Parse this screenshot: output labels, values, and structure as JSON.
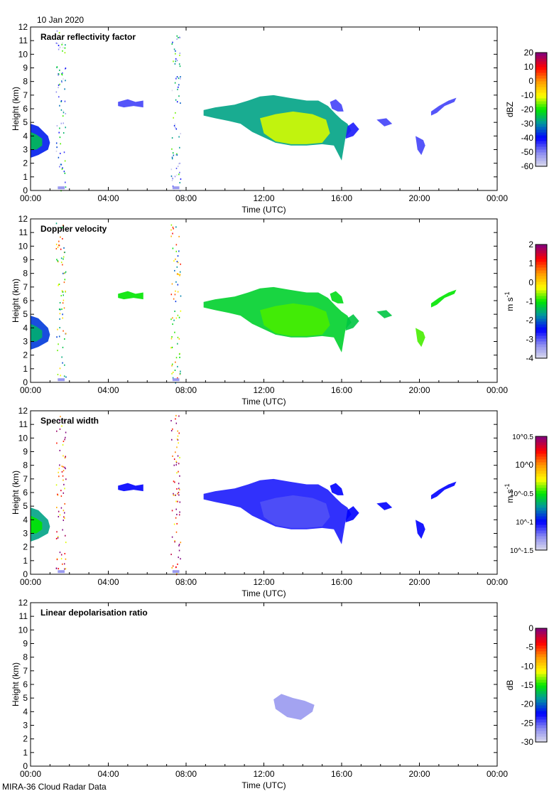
{
  "header": {
    "date": "10 Jan 2020"
  },
  "footer": {
    "caption": "MIRA-36 Cloud Radar Data"
  },
  "chart_data": {
    "type": "heatmap",
    "x_ticks": [
      "00:00",
      "04:00",
      "08:00",
      "12:00",
      "16:00",
      "20:00",
      "00:00"
    ],
    "x_tick_hours": [
      0,
      4,
      8,
      12,
      16,
      20,
      24
    ],
    "xlim": [
      0,
      24
    ],
    "ylim": [
      0,
      12
    ],
    "y_ticks": [
      "0",
      "1",
      "2",
      "3",
      "4",
      "5",
      "6",
      "7",
      "8",
      "9",
      "10",
      "11",
      "12"
    ],
    "xlabel": "Time (UTC)",
    "ylabel": "Height (km)",
    "shapes": {
      "left_outer": {
        "t": [
          0,
          0.4,
          0.9,
          1.0,
          0.9,
          0.4,
          0
        ],
        "h": [
          4.9,
          4.7,
          4.0,
          3.5,
          3.0,
          2.6,
          2.4
        ]
      },
      "left_inner": {
        "t": [
          0,
          0.3,
          0.6,
          0.6,
          0.3,
          0
        ],
        "h": [
          4.3,
          4.1,
          3.8,
          3.3,
          3.0,
          3.0
        ]
      },
      "patch_0500": {
        "t": [
          4.5,
          5.0,
          5.4,
          5.8,
          5.8,
          5.3,
          4.8,
          4.5
        ],
        "h": [
          6.5,
          6.7,
          6.5,
          6.6,
          6.1,
          6.2,
          6.1,
          6.2
        ]
      },
      "main_outer": {
        "t": [
          8.9,
          9.5,
          10.5,
          11.2,
          11.8,
          12.5,
          13.3,
          14.2,
          14.8,
          15.3,
          15.7,
          16.0,
          16.3,
          16.5,
          16.2,
          16.0,
          15.6,
          15.0,
          14.2,
          13.4,
          12.6,
          12.0,
          11.4,
          10.8,
          10.2,
          9.5,
          8.9
        ],
        "h": [
          5.9,
          6.1,
          6.3,
          6.6,
          6.9,
          7.0,
          6.8,
          6.6,
          6.6,
          6.2,
          5.6,
          5.2,
          4.9,
          4.4,
          3.9,
          2.2,
          3.3,
          3.4,
          3.3,
          3.3,
          3.5,
          3.9,
          4.3,
          4.9,
          5.1,
          5.3,
          5.5
        ]
      },
      "main_inner": {
        "t": [
          11.8,
          12.6,
          13.5,
          14.5,
          15.2,
          15.4,
          15.0,
          14.2,
          13.4,
          12.6,
          12.0
        ],
        "h": [
          5.3,
          5.6,
          5.8,
          5.6,
          5.2,
          4.2,
          3.5,
          3.4,
          3.4,
          3.6,
          4.2
        ]
      },
      "tail_1620": {
        "t": [
          16.3,
          16.6,
          16.9,
          16.6,
          16.2
        ],
        "h": [
          4.7,
          5.0,
          4.5,
          4.0,
          3.8
        ]
      },
      "patch_1800": {
        "t": [
          17.8,
          18.3,
          18.6,
          18.2
        ],
        "h": [
          5.2,
          5.3,
          4.9,
          4.7
        ]
      },
      "patch_2000": {
        "t": [
          19.8,
          20.2,
          20.3,
          20.1,
          19.9
        ],
        "h": [
          4.0,
          3.7,
          3.3,
          2.6,
          3.0
        ]
      },
      "patch_2100": {
        "t": [
          20.6,
          21.0,
          21.5,
          21.9,
          21.8,
          21.3,
          20.9,
          20.6
        ],
        "h": [
          5.8,
          6.2,
          6.6,
          6.8,
          6.5,
          6.2,
          5.7,
          5.5
        ]
      },
      "patch_1530": {
        "t": [
          15.4,
          15.7,
          16.0,
          16.1,
          15.8,
          15.5
        ],
        "h": [
          6.5,
          6.7,
          6.3,
          5.8,
          5.8,
          6.0
        ]
      },
      "ldr_blob": {
        "t": [
          12.5,
          12.9,
          13.5,
          14.1,
          14.6,
          14.5,
          13.9,
          13.2,
          12.6
        ],
        "h": [
          4.9,
          5.3,
          5.0,
          4.8,
          4.5,
          4.0,
          3.4,
          3.6,
          4.2
        ]
      }
    },
    "panels": [
      {
        "title": "Radar reflectivity factor",
        "unit": "dBZ",
        "scale": "linear",
        "range": [
          -60,
          20
        ],
        "cbar_ticks": [
          "20",
          "10",
          "0",
          "-10",
          "-20",
          "-30",
          "-40",
          "-50",
          "-60"
        ],
        "cbar_values": [
          20,
          10,
          0,
          -10,
          -20,
          -30,
          -40,
          -50,
          -60
        ],
        "features": [
          [
            "left_outer",
            -38
          ],
          [
            "left_inner",
            -25
          ],
          [
            "patch_0500",
            -45
          ],
          [
            "main_outer",
            -28
          ],
          [
            "main_inner",
            -12
          ],
          [
            "tail_1620",
            -42
          ],
          [
            "patch_1800",
            -45
          ],
          [
            "patch_2000",
            -45
          ],
          [
            "patch_2100",
            -45
          ],
          [
            "patch_1530",
            -45
          ]
        ],
        "streak_value": -38
      },
      {
        "title": "Doppler velocity",
        "unit": "m s-1",
        "scale": "linear",
        "range": [
          -4,
          2
        ],
        "cbar_ticks": [
          "2",
          "1",
          "0",
          "-1",
          "-2",
          "-3",
          "-4"
        ],
        "cbar_values": [
          2,
          1,
          0,
          -1,
          -2,
          -3,
          -4
        ],
        "features": [
          [
            "left_outer",
            -2.2
          ],
          [
            "left_inner",
            -1.5
          ],
          [
            "patch_0500",
            -1.0
          ],
          [
            "main_outer",
            -1.2
          ],
          [
            "main_inner",
            -0.8
          ],
          [
            "tail_1620",
            -1.3
          ],
          [
            "patch_1800",
            -1.3
          ],
          [
            "patch_2000",
            -0.8
          ],
          [
            "patch_2100",
            -1.0
          ],
          [
            "patch_1530",
            -1.1
          ]
        ],
        "streak_value": -0.5
      },
      {
        "title": "Spectral width",
        "unit": "m s-1",
        "scale": "log10",
        "range": [
          -1.5,
          0.5
        ],
        "cbar_ticks": [
          "10^0.5",
          "10^0",
          "10^-0.5",
          "10^-1",
          "10^-1.5"
        ],
        "cbar_values": [
          0.5,
          0,
          -0.5,
          -1,
          -1.5
        ],
        "features": [
          [
            "left_outer",
            -0.7
          ],
          [
            "left_inner",
            -0.5
          ],
          [
            "patch_0500",
            -1.0
          ],
          [
            "main_outer",
            -1.05
          ],
          [
            "main_inner",
            -1.15
          ],
          [
            "tail_1620",
            -1.0
          ],
          [
            "patch_1800",
            -1.0
          ],
          [
            "patch_2000",
            -1.0
          ],
          [
            "patch_2100",
            -1.0
          ],
          [
            "patch_1530",
            -1.0
          ]
        ],
        "streak_value": 0.3
      },
      {
        "title": "Linear depolarisation ratio",
        "unit": "dB",
        "scale": "linear",
        "range": [
          -30,
          0
        ],
        "cbar_ticks": [
          "0",
          "-5",
          "-10",
          "-15",
          "-20",
          "-25",
          "-30"
        ],
        "cbar_values": [
          0,
          -5,
          -10,
          -15,
          -20,
          -25,
          -30
        ],
        "features": [
          [
            "ldr_blob",
            -27
          ]
        ],
        "streak_value": null
      }
    ]
  }
}
